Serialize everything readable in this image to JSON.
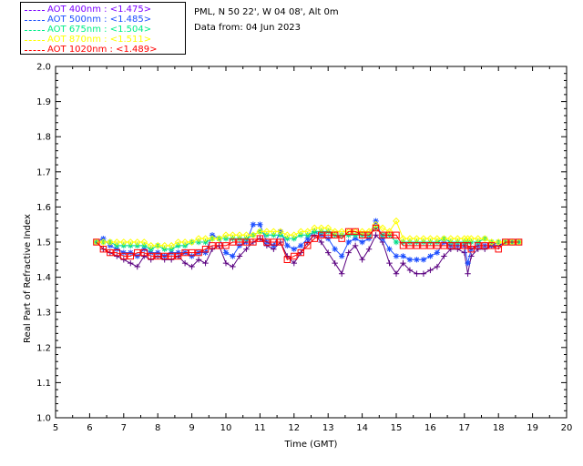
{
  "info": {
    "site": "PML, N 50 22', W 04 08', Alt 0m",
    "date_line": "Data from: 04 Jun 2023"
  },
  "legend": [
    {
      "label": "AOT  400nm : <1.475>",
      "color": "#7b00ff"
    },
    {
      "label": "AOT  500nm : <1.485>",
      "color": "#1d4fff"
    },
    {
      "label": "AOT  675nm : <1.504>",
      "color": "#00ee88"
    },
    {
      "label": "AOT  870nm : <1.511>",
      "color": "#ffff00"
    },
    {
      "label": "AOT 1020nm : <1.489>",
      "color": "#ff0000"
    }
  ],
  "chart_data": {
    "type": "line",
    "xlabel": "Time (GMT)",
    "ylabel": "Real Part of Refractive Index",
    "xlim": [
      5,
      20
    ],
    "ylim": [
      1.0,
      2.0
    ],
    "x_ticks": [
      "5",
      "6",
      "7",
      "8",
      "9",
      "10",
      "11",
      "12",
      "13",
      "14",
      "15",
      "16",
      "17",
      "18",
      "19",
      "20"
    ],
    "y_ticks": [
      "1.0",
      "1.1",
      "1.2",
      "1.3",
      "1.4",
      "1.5",
      "1.6",
      "1.7",
      "1.8",
      "1.9",
      "2.0"
    ],
    "grid": false,
    "legend_position": "top-left, outside plot",
    "series": [
      {
        "name": "AOT  400nm : <1.475>",
        "color": "#5a0080",
        "marker": "plus",
        "x": [
          6.2,
          6.4,
          6.6,
          6.8,
          7.0,
          7.2,
          7.4,
          7.6,
          7.8,
          8.0,
          8.2,
          8.4,
          8.6,
          8.8,
          9.0,
          9.2,
          9.4,
          9.6,
          9.8,
          10.0,
          10.2,
          10.4,
          10.6,
          10.8,
          11.0,
          11.2,
          11.4,
          11.6,
          11.8,
          12.0,
          12.2,
          12.4,
          12.6,
          12.8,
          13.0,
          13.2,
          13.4,
          13.6,
          13.8,
          14.0,
          14.2,
          14.4,
          14.6,
          14.8,
          15.0,
          15.2,
          15.4,
          15.6,
          15.8,
          16.0,
          16.2,
          16.4,
          16.6,
          16.8,
          17.0,
          17.1,
          17.2,
          17.4,
          17.6,
          17.8,
          18.0,
          18.2,
          18.4,
          18.6
        ],
        "y": [
          1.5,
          1.48,
          1.47,
          1.46,
          1.45,
          1.44,
          1.43,
          1.46,
          1.45,
          1.46,
          1.45,
          1.45,
          1.46,
          1.44,
          1.43,
          1.45,
          1.44,
          1.48,
          1.49,
          1.44,
          1.43,
          1.46,
          1.48,
          1.5,
          1.51,
          1.49,
          1.48,
          1.5,
          1.46,
          1.44,
          1.47,
          1.5,
          1.52,
          1.5,
          1.47,
          1.44,
          1.41,
          1.47,
          1.49,
          1.45,
          1.48,
          1.52,
          1.5,
          1.44,
          1.41,
          1.44,
          1.42,
          1.41,
          1.41,
          1.42,
          1.43,
          1.46,
          1.48,
          1.48,
          1.47,
          1.41,
          1.46,
          1.48,
          1.48,
          1.49,
          1.49,
          1.5,
          1.5,
          1.5
        ]
      },
      {
        "name": "AOT  500nm : <1.485>",
        "color": "#1d4fff",
        "marker": "asterisk",
        "x": [
          6.2,
          6.4,
          6.6,
          6.8,
          7.0,
          7.2,
          7.4,
          7.6,
          7.8,
          8.0,
          8.2,
          8.4,
          8.6,
          8.8,
          9.0,
          9.2,
          9.4,
          9.6,
          9.8,
          10.0,
          10.2,
          10.4,
          10.6,
          10.8,
          11.0,
          11.2,
          11.4,
          11.6,
          11.8,
          12.0,
          12.2,
          12.4,
          12.6,
          12.8,
          13.0,
          13.2,
          13.4,
          13.6,
          13.8,
          14.0,
          14.2,
          14.4,
          14.6,
          14.8,
          15.0,
          15.2,
          15.4,
          15.6,
          15.8,
          16.0,
          16.2,
          16.4,
          16.6,
          16.8,
          17.0,
          17.1,
          17.2,
          17.4,
          17.6,
          17.8,
          18.0,
          18.2,
          18.4,
          18.6
        ],
        "y": [
          1.5,
          1.51,
          1.49,
          1.48,
          1.47,
          1.47,
          1.46,
          1.48,
          1.47,
          1.47,
          1.46,
          1.47,
          1.47,
          1.47,
          1.46,
          1.47,
          1.47,
          1.52,
          1.51,
          1.47,
          1.46,
          1.49,
          1.5,
          1.55,
          1.55,
          1.5,
          1.49,
          1.53,
          1.49,
          1.48,
          1.49,
          1.51,
          1.53,
          1.52,
          1.51,
          1.48,
          1.46,
          1.5,
          1.51,
          1.5,
          1.51,
          1.56,
          1.51,
          1.48,
          1.46,
          1.46,
          1.45,
          1.45,
          1.45,
          1.46,
          1.47,
          1.5,
          1.49,
          1.49,
          1.49,
          1.44,
          1.48,
          1.49,
          1.49,
          1.49,
          1.5,
          1.5,
          1.5,
          1.5
        ]
      },
      {
        "name": "AOT  675nm : <1.504>",
        "color": "#00dd88",
        "marker": "asterisk",
        "x": [
          6.2,
          6.4,
          6.6,
          6.8,
          7.0,
          7.2,
          7.4,
          7.6,
          7.8,
          8.0,
          8.2,
          8.4,
          8.6,
          8.8,
          9.0,
          9.2,
          9.4,
          9.6,
          9.8,
          10.0,
          10.2,
          10.4,
          10.6,
          10.8,
          11.0,
          11.2,
          11.4,
          11.6,
          11.8,
          12.0,
          12.2,
          12.4,
          12.6,
          12.8,
          13.0,
          13.2,
          13.4,
          13.6,
          13.8,
          14.0,
          14.2,
          14.4,
          14.6,
          14.8,
          15.0,
          15.2,
          15.4,
          15.6,
          15.8,
          16.0,
          16.2,
          16.4,
          16.6,
          16.8,
          17.0,
          17.1,
          17.2,
          17.4,
          17.6,
          17.8,
          18.0,
          18.2,
          18.4,
          18.6
        ],
        "y": [
          1.5,
          1.5,
          1.5,
          1.49,
          1.49,
          1.49,
          1.49,
          1.49,
          1.48,
          1.49,
          1.48,
          1.48,
          1.49,
          1.49,
          1.5,
          1.5,
          1.5,
          1.51,
          1.51,
          1.51,
          1.51,
          1.51,
          1.51,
          1.52,
          1.53,
          1.52,
          1.52,
          1.52,
          1.51,
          1.51,
          1.52,
          1.52,
          1.53,
          1.53,
          1.53,
          1.52,
          1.52,
          1.52,
          1.52,
          1.52,
          1.52,
          1.54,
          1.52,
          1.52,
          1.5,
          1.5,
          1.5,
          1.5,
          1.5,
          1.5,
          1.5,
          1.51,
          1.5,
          1.5,
          1.5,
          1.5,
          1.5,
          1.5,
          1.51,
          1.5,
          1.5,
          1.5,
          1.5,
          1.5
        ]
      },
      {
        "name": "AOT  870nm : <1.511>",
        "color": "#ffff00",
        "marker": "diamond",
        "x": [
          6.2,
          6.4,
          6.6,
          6.8,
          7.0,
          7.2,
          7.4,
          7.6,
          7.8,
          8.0,
          8.2,
          8.4,
          8.6,
          8.8,
          9.0,
          9.2,
          9.4,
          9.6,
          9.8,
          10.0,
          10.2,
          10.4,
          10.6,
          10.8,
          11.0,
          11.2,
          11.4,
          11.6,
          11.8,
          12.0,
          12.2,
          12.4,
          12.6,
          12.8,
          13.0,
          13.2,
          13.4,
          13.6,
          13.8,
          14.0,
          14.2,
          14.4,
          14.6,
          14.8,
          15.0,
          15.2,
          15.4,
          15.6,
          15.8,
          16.0,
          16.2,
          16.4,
          16.6,
          16.8,
          17.0,
          17.1,
          17.2,
          17.4,
          17.6,
          17.8,
          18.0,
          18.2,
          18.4,
          18.6
        ],
        "y": [
          1.5,
          1.5,
          1.5,
          1.5,
          1.5,
          1.5,
          1.5,
          1.5,
          1.49,
          1.49,
          1.49,
          1.49,
          1.5,
          1.5,
          1.5,
          1.51,
          1.51,
          1.51,
          1.51,
          1.52,
          1.52,
          1.52,
          1.52,
          1.52,
          1.53,
          1.53,
          1.53,
          1.53,
          1.52,
          1.52,
          1.53,
          1.53,
          1.54,
          1.54,
          1.54,
          1.53,
          1.53,
          1.53,
          1.53,
          1.53,
          1.53,
          1.55,
          1.54,
          1.53,
          1.56,
          1.51,
          1.51,
          1.51,
          1.51,
          1.51,
          1.51,
          1.51,
          1.51,
          1.51,
          1.51,
          1.51,
          1.51,
          1.51,
          1.51,
          1.5,
          1.5,
          1.5,
          1.5,
          1.5
        ]
      },
      {
        "name": "AOT 1020nm : <1.489>",
        "color": "#ff0000",
        "marker": "square",
        "x": [
          6.2,
          6.4,
          6.6,
          6.8,
          7.0,
          7.2,
          7.4,
          7.6,
          7.8,
          8.0,
          8.2,
          8.4,
          8.6,
          8.8,
          9.0,
          9.2,
          9.4,
          9.6,
          9.8,
          10.0,
          10.2,
          10.4,
          10.6,
          10.8,
          11.0,
          11.2,
          11.4,
          11.6,
          11.8,
          12.0,
          12.2,
          12.4,
          12.6,
          12.8,
          13.0,
          13.2,
          13.4,
          13.6,
          13.8,
          14.0,
          14.2,
          14.4,
          14.6,
          14.8,
          15.0,
          15.2,
          15.4,
          15.6,
          15.8,
          16.0,
          16.2,
          16.4,
          16.6,
          16.8,
          17.0,
          17.1,
          17.2,
          17.4,
          17.6,
          17.8,
          18.0,
          18.2,
          18.4,
          18.6
        ],
        "y": [
          1.5,
          1.48,
          1.47,
          1.47,
          1.46,
          1.46,
          1.47,
          1.47,
          1.46,
          1.46,
          1.46,
          1.46,
          1.46,
          1.47,
          1.47,
          1.47,
          1.48,
          1.49,
          1.49,
          1.49,
          1.5,
          1.5,
          1.5,
          1.5,
          1.51,
          1.5,
          1.5,
          1.5,
          1.45,
          1.46,
          1.47,
          1.49,
          1.51,
          1.52,
          1.52,
          1.52,
          1.51,
          1.53,
          1.53,
          1.52,
          1.52,
          1.54,
          1.52,
          1.52,
          1.52,
          1.49,
          1.49,
          1.49,
          1.49,
          1.49,
          1.49,
          1.49,
          1.49,
          1.49,
          1.49,
          1.49,
          1.48,
          1.49,
          1.49,
          1.49,
          1.48,
          1.5,
          1.5,
          1.5
        ]
      }
    ]
  }
}
